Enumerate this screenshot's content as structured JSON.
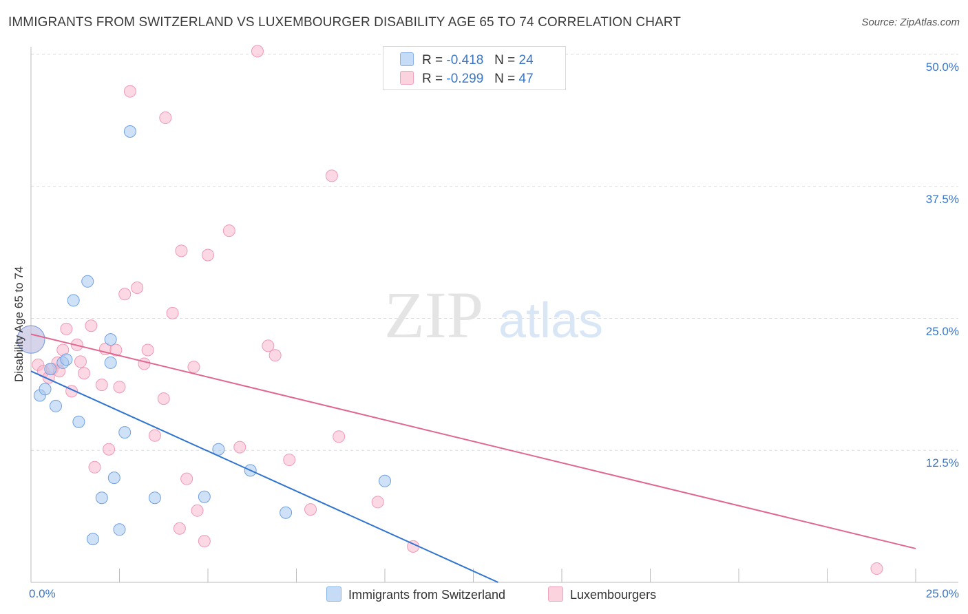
{
  "title": "IMMIGRANTS FROM SWITZERLAND VS LUXEMBOURGER DISABILITY AGE 65 TO 74 CORRELATION CHART",
  "source": "Source: ZipAtlas.com",
  "watermark": {
    "zip": "ZIP",
    "atlas": "atlas"
  },
  "stats_legend": [
    {
      "r_label": "R =",
      "r_value": "-0.418",
      "n_label": "N =",
      "n_value": "24",
      "color": "#a8c8f0"
    },
    {
      "r_label": "R =",
      "r_value": "-0.299",
      "n_label": "N =",
      "n_value": "47",
      "color": "#f7b8cc"
    }
  ],
  "bottom_legend": [
    {
      "label": "Immigrants from Switzerland",
      "color": "#a8c8f0"
    },
    {
      "label": "Luxembourgers",
      "color": "#f7b8cc"
    }
  ],
  "chart_data": {
    "type": "scatter",
    "title": "IMMIGRANTS FROM SWITZERLAND VS LUXEMBOURGER DISABILITY AGE 65 TO 74 CORRELATION CHART",
    "xlabel": "",
    "ylabel": "Disability Age 65 to 74",
    "xlim": [
      0,
      25
    ],
    "ylim": [
      0,
      50
    ],
    "x_tick_labels": [
      "0.0%",
      "25.0%"
    ],
    "y_tick_labels": [
      {
        "value": 12.5,
        "label": "12.5%"
      },
      {
        "value": 25.0,
        "label": "25.0%"
      },
      {
        "value": 37.5,
        "label": "37.5%"
      },
      {
        "value": 50.0,
        "label": "50.0%"
      }
    ],
    "series": [
      {
        "name": "Immigrants from Switzerland",
        "color": "#a8c8f0",
        "stroke": "#6fa0e0",
        "line_color": "#2f74d0",
        "trend": {
          "x0": 0.0,
          "y0": 20.0,
          "x1": 13.2,
          "y1": 0.0
        },
        "points": [
          {
            "x": 0.0,
            "y": 23.0,
            "big": true
          },
          {
            "x": 0.25,
            "y": 17.7
          },
          {
            "x": 0.4,
            "y": 18.3
          },
          {
            "x": 0.55,
            "y": 20.2
          },
          {
            "x": 0.7,
            "y": 16.7
          },
          {
            "x": 0.9,
            "y": 20.8
          },
          {
            "x": 1.0,
            "y": 21.1
          },
          {
            "x": 1.2,
            "y": 26.7
          },
          {
            "x": 1.35,
            "y": 15.2
          },
          {
            "x": 1.6,
            "y": 28.5
          },
          {
            "x": 1.75,
            "y": 4.1
          },
          {
            "x": 2.0,
            "y": 8.0
          },
          {
            "x": 2.25,
            "y": 20.8
          },
          {
            "x": 2.25,
            "y": 23.0
          },
          {
            "x": 2.35,
            "y": 9.9
          },
          {
            "x": 2.5,
            "y": 5.0
          },
          {
            "x": 2.65,
            "y": 14.2
          },
          {
            "x": 2.8,
            "y": 42.7
          },
          {
            "x": 3.5,
            "y": 8.0
          },
          {
            "x": 4.9,
            "y": 8.1
          },
          {
            "x": 5.3,
            "y": 12.6
          },
          {
            "x": 6.2,
            "y": 10.6
          },
          {
            "x": 7.2,
            "y": 6.6
          },
          {
            "x": 10.0,
            "y": 9.6
          }
        ]
      },
      {
        "name": "Luxembourgers",
        "color": "#f7b8cc",
        "stroke": "#ef9ab4",
        "line_color": "#e06890",
        "trend": {
          "x0": 0.0,
          "y0": 23.5,
          "x1": 25.0,
          "y1": 3.2
        },
        "points": [
          {
            "x": 0.0,
            "y": 23.0,
            "big": true
          },
          {
            "x": 0.2,
            "y": 20.6
          },
          {
            "x": 0.35,
            "y": 20.0
          },
          {
            "x": 0.5,
            "y": 19.4
          },
          {
            "x": 0.6,
            "y": 20.2
          },
          {
            "x": 0.75,
            "y": 20.8
          },
          {
            "x": 0.8,
            "y": 20.0
          },
          {
            "x": 0.9,
            "y": 22.0
          },
          {
            "x": 1.0,
            "y": 24.0
          },
          {
            "x": 1.15,
            "y": 18.1
          },
          {
            "x": 1.3,
            "y": 22.5
          },
          {
            "x": 1.4,
            "y": 20.9
          },
          {
            "x": 1.5,
            "y": 19.8
          },
          {
            "x": 1.7,
            "y": 24.3
          },
          {
            "x": 1.8,
            "y": 10.9
          },
          {
            "x": 2.0,
            "y": 18.7
          },
          {
            "x": 2.1,
            "y": 22.1
          },
          {
            "x": 2.2,
            "y": 12.6
          },
          {
            "x": 2.4,
            "y": 22.0
          },
          {
            "x": 2.5,
            "y": 18.5
          },
          {
            "x": 2.65,
            "y": 27.3
          },
          {
            "x": 2.8,
            "y": 46.5
          },
          {
            "x": 3.0,
            "y": 27.9
          },
          {
            "x": 3.2,
            "y": 20.7
          },
          {
            "x": 3.3,
            "y": 22.0
          },
          {
            "x": 3.5,
            "y": 13.9
          },
          {
            "x": 3.75,
            "y": 17.4
          },
          {
            "x": 3.8,
            "y": 44.0
          },
          {
            "x": 4.0,
            "y": 25.5
          },
          {
            "x": 4.2,
            "y": 5.1
          },
          {
            "x": 4.25,
            "y": 31.4
          },
          {
            "x": 4.4,
            "y": 9.8
          },
          {
            "x": 4.6,
            "y": 20.4
          },
          {
            "x": 4.7,
            "y": 6.8
          },
          {
            "x": 4.9,
            "y": 3.9
          },
          {
            "x": 5.0,
            "y": 31.0
          },
          {
            "x": 5.6,
            "y": 33.3
          },
          {
            "x": 5.9,
            "y": 12.8
          },
          {
            "x": 6.4,
            "y": 50.3
          },
          {
            "x": 6.7,
            "y": 22.4
          },
          {
            "x": 6.9,
            "y": 21.5
          },
          {
            "x": 7.3,
            "y": 11.6
          },
          {
            "x": 7.9,
            "y": 6.9
          },
          {
            "x": 8.5,
            "y": 38.5
          },
          {
            "x": 8.7,
            "y": 13.8
          },
          {
            "x": 9.8,
            "y": 7.6
          },
          {
            "x": 10.8,
            "y": 3.4
          },
          {
            "x": 23.9,
            "y": 1.3
          }
        ]
      }
    ]
  }
}
